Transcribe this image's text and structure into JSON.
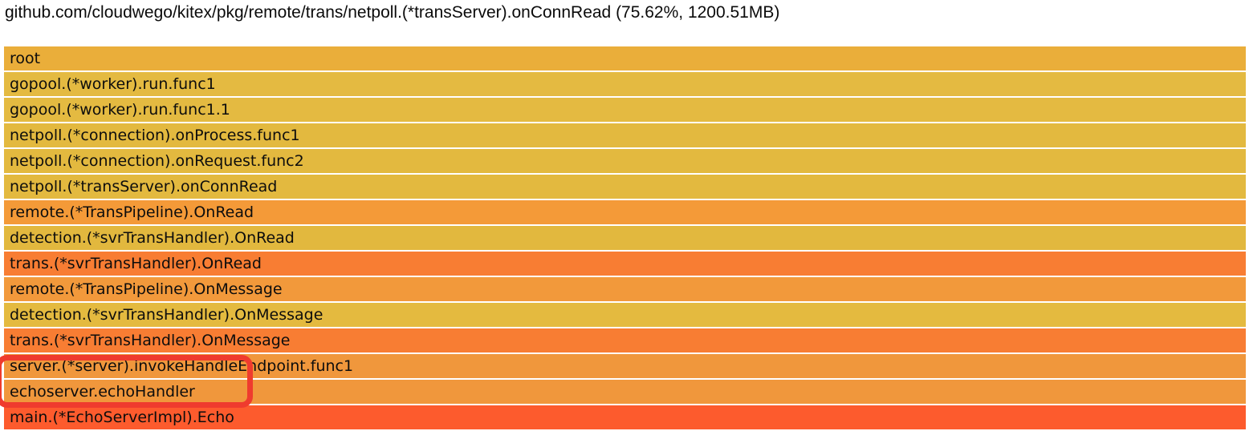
{
  "header": {
    "title": "github.com/cloudwego/kitex/pkg/remote/trans/netpoll.(*transServer).onConnRead (75.62%, 1200.51MB)"
  },
  "chart_data": {
    "type": "bar",
    "subtype": "flame-graph-icicle",
    "title": "github.com/cloudwego/kitex/pkg/remote/trans/netpoll.(*transServer).onConnRead (75.62%, 1200.51MB)",
    "orientation": "root-at-top, each frame spans full width (100%)",
    "selected_frame": {
      "name": "github.com/cloudwego/kitex/pkg/remote/trans/netpoll.(*transServer).onConnRead",
      "percent": 75.62,
      "value": "1200.51MB"
    },
    "frames": [
      {
        "label": "root",
        "color": "#eaae3a",
        "width_pct": 100
      },
      {
        "label": "gopool.(*worker).run.func1",
        "color": "#e4ba41",
        "width_pct": 100
      },
      {
        "label": "gopool.(*worker).run.func1.1",
        "color": "#e4ba41",
        "width_pct": 100
      },
      {
        "label": "netpoll.(*connection).onProcess.func1",
        "color": "#e3b93f",
        "width_pct": 100
      },
      {
        "label": "netpoll.(*connection).onRequest.func2",
        "color": "#e3b93f",
        "width_pct": 100
      },
      {
        "label": "netpoll.(*transServer).onConnRead",
        "color": "#e3b93f",
        "width_pct": 100
      },
      {
        "label": "remote.(*TransPipeline).OnRead",
        "color": "#f49a38",
        "width_pct": 100
      },
      {
        "label": "detection.(*svrTransHandler).OnRead",
        "color": "#e2b83e",
        "width_pct": 100
      },
      {
        "label": "trans.(*svrTransHandler).OnRead",
        "color": "#f87d33",
        "width_pct": 100
      },
      {
        "label": "remote.(*TransPipeline).OnMessage",
        "color": "#f2993b",
        "width_pct": 100
      },
      {
        "label": "detection.(*svrTransHandler).OnMessage",
        "color": "#e4ba3f",
        "width_pct": 100
      },
      {
        "label": "trans.(*svrTransHandler).OnMessage",
        "color": "#f87d33",
        "width_pct": 100
      },
      {
        "label": "server.(*server).invokeHandleEndpoint.func1",
        "color": "#f0973c",
        "width_pct": 100
      },
      {
        "label": "echoserver.echoHandler",
        "color": "#f0973c",
        "width_pct": 100
      },
      {
        "label": "main.(*EchoServerImpl).Echo",
        "color": "#fd5b2d",
        "width_pct": 100
      }
    ]
  },
  "annotation": {
    "color": "#ef3b2e",
    "highlighted_frames": [
      "server.(*server).invokeHandleEndpoint.func1",
      "echoserver.echoHandler"
    ]
  }
}
